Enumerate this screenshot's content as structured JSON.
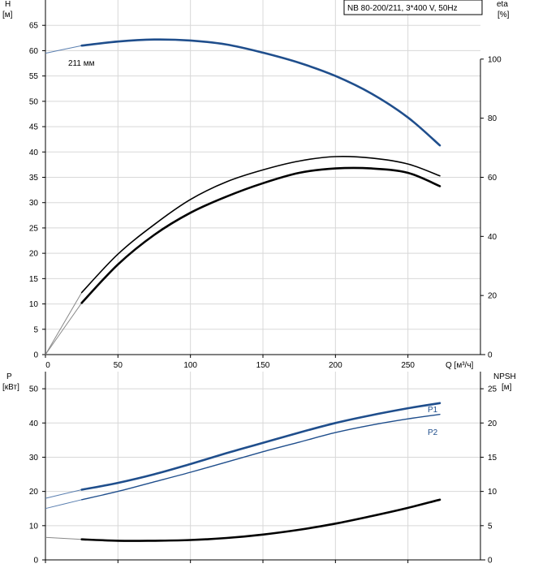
{
  "chart_data": [
    {
      "type": "line",
      "title": "NB 80-200/211, 3*400 V, 50Hz",
      "xlabel": "Q [м³/ч]",
      "xlim": [
        0,
        300
      ],
      "x_ticks": [
        0,
        50,
        100,
        150,
        200,
        250
      ],
      "y_axes": {
        "left": {
          "label_line1": "H",
          "label_line2": "[м]",
          "lim": [
            0,
            70
          ],
          "ticks": [
            0,
            5,
            10,
            15,
            20,
            25,
            30,
            35,
            40,
            45,
            50,
            55,
            60,
            65
          ]
        },
        "right": {
          "label_line1": "eta",
          "label_line2": "[%]",
          "lim": [
            0,
            120
          ],
          "ticks": [
            0,
            20,
            40,
            60,
            80,
            100
          ]
        }
      },
      "grid": true,
      "series": [
        {
          "name": "211 мм",
          "axis": "left",
          "color": "#1f4e8c",
          "x": [
            0,
            25,
            50,
            75,
            100,
            125,
            150,
            175,
            200,
            225,
            250,
            272
          ],
          "y": [
            59.5,
            61.0,
            61.8,
            62.2,
            62.0,
            61.2,
            59.6,
            57.6,
            55.0,
            51.5,
            46.8,
            41.3
          ]
        },
        {
          "name": "",
          "axis": "right",
          "color": "#000000",
          "x": [
            0,
            25,
            50,
            75,
            100,
            125,
            150,
            175,
            200,
            225,
            250,
            272
          ],
          "y": [
            0,
            21,
            34,
            44,
            52.5,
            58.5,
            62.5,
            65.5,
            67.0,
            66.5,
            64.5,
            60.5
          ]
        },
        {
          "name": "",
          "axis": "right",
          "color": "#000000",
          "x": [
            0,
            25,
            50,
            75,
            100,
            125,
            150,
            175,
            200,
            225,
            250,
            272
          ],
          "y": [
            0,
            17.5,
            30.5,
            40.5,
            48.0,
            53.5,
            58.0,
            61.5,
            63.0,
            63.0,
            61.5,
            57.0
          ]
        }
      ]
    },
    {
      "type": "line",
      "xlim": [
        0,
        300
      ],
      "x_ticks": [
        0,
        50,
        100,
        150,
        200,
        250
      ],
      "y_axes": {
        "left": {
          "label_line1": "P",
          "label_line2": "[кВт]",
          "lim": [
            0,
            55
          ],
          "ticks": [
            0,
            10,
            20,
            30,
            40,
            50
          ]
        },
        "right": {
          "label_line1": "NPSH",
          "label_line2": "[м]",
          "lim": [
            0,
            27.5
          ],
          "ticks": [
            0,
            5,
            10,
            15,
            20,
            25
          ]
        }
      },
      "grid": true,
      "series": [
        {
          "name": "P1",
          "axis": "left",
          "color": "#1f4e8c",
          "x": [
            0,
            25,
            50,
            75,
            100,
            125,
            150,
            175,
            200,
            225,
            250,
            272
          ],
          "y": [
            18.0,
            20.5,
            22.5,
            25.0,
            28.0,
            31.2,
            34.2,
            37.2,
            40.0,
            42.3,
            44.3,
            45.8
          ]
        },
        {
          "name": "P2",
          "axis": "left",
          "color": "#1f4e8c",
          "x": [
            0,
            25,
            50,
            75,
            100,
            125,
            150,
            175,
            200,
            225,
            250,
            272
          ],
          "y": [
            15.0,
            17.6,
            20.0,
            22.8,
            25.6,
            28.6,
            31.6,
            34.4,
            37.2,
            39.4,
            41.2,
            42.5
          ]
        },
        {
          "name": "",
          "axis": "right",
          "color": "#000000",
          "x": [
            0,
            25,
            50,
            75,
            100,
            125,
            150,
            175,
            200,
            225,
            250,
            272
          ],
          "y": [
            3.3,
            3.0,
            2.8,
            2.8,
            2.9,
            3.2,
            3.7,
            4.4,
            5.3,
            6.4,
            7.6,
            8.8
          ]
        }
      ]
    }
  ]
}
